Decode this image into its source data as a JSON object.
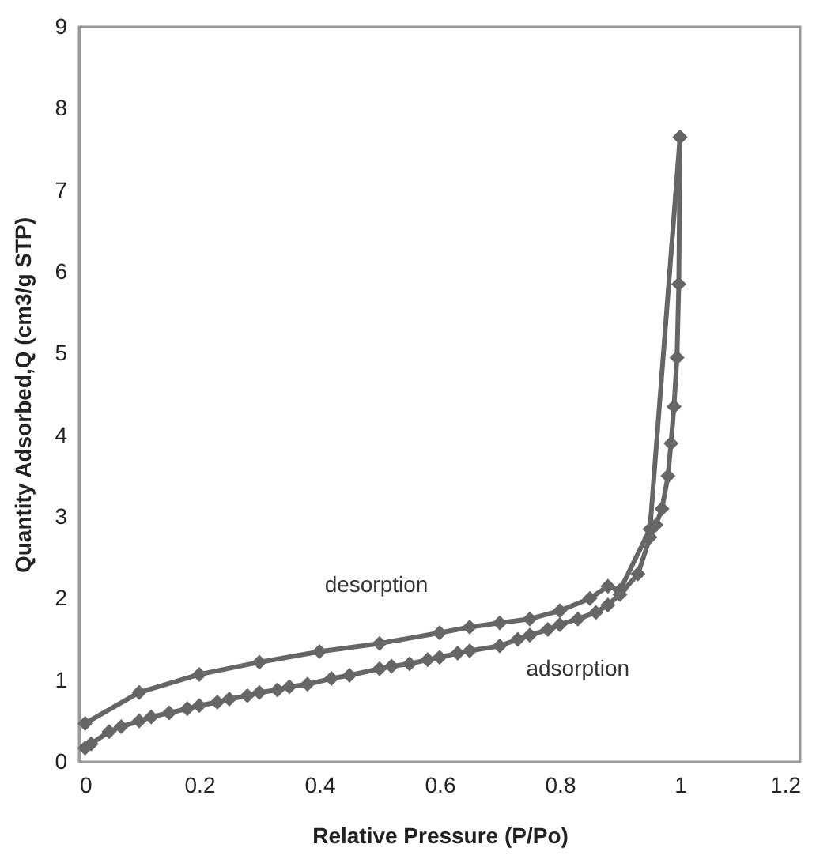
{
  "chart_data": {
    "type": "line",
    "xlabel": "Relative Pressure (P/Po)",
    "ylabel": "Quantity Adsorbed,Q (cm3/g STP)",
    "xlim": [
      0,
      1.2
    ],
    "xticks": [
      0,
      0.2,
      0.4,
      0.6,
      0.8,
      1,
      1.2
    ],
    "ylim": [
      0,
      9
    ],
    "yticks": [
      0,
      1,
      2,
      3,
      4,
      5,
      6,
      7,
      8,
      9
    ],
    "grid": false,
    "marker": "diamond",
    "line_style": "solid",
    "annotations": [
      {
        "text": "desorption",
        "x": 0.6,
        "y": 1.58
      },
      {
        "text": "adsorption",
        "x": 0.83,
        "y": 1.75
      }
    ],
    "series": [
      {
        "color": "#666666",
        "x": [
          0.01,
          0.02,
          0.05,
          0.07,
          0.1,
          0.12,
          0.15,
          0.18,
          0.2,
          0.23,
          0.25,
          0.28,
          0.3,
          0.33,
          0.35,
          0.38,
          0.42,
          0.45,
          0.5,
          0.52,
          0.55,
          0.58,
          0.6,
          0.63,
          0.65,
          0.7,
          0.73,
          0.75,
          0.78,
          0.8,
          0.83,
          0.86,
          0.88,
          0.9,
          0.93,
          0.95,
          0.96,
          0.97,
          0.98,
          0.985,
          0.99,
          0.995,
          0.998,
          1.0
        ],
        "values": [
          0.17,
          0.22,
          0.37,
          0.43,
          0.5,
          0.55,
          0.6,
          0.65,
          0.69,
          0.73,
          0.77,
          0.81,
          0.85,
          0.88,
          0.92,
          0.95,
          1.02,
          1.06,
          1.14,
          1.17,
          1.2,
          1.25,
          1.28,
          1.33,
          1.36,
          1.42,
          1.5,
          1.55,
          1.62,
          1.68,
          1.75,
          1.83,
          1.92,
          2.05,
          2.3,
          2.75,
          2.9,
          3.1,
          3.5,
          3.9,
          4.35,
          4.95,
          5.85,
          7.65
        ]
      },
      {
        "color": "#666666",
        "x": [
          1.0,
          0.95,
          0.9,
          0.88,
          0.85,
          0.8,
          0.75,
          0.7,
          0.65,
          0.6,
          0.5,
          0.4,
          0.3,
          0.2,
          0.1,
          0.01
        ],
        "values": [
          7.65,
          2.85,
          2.1,
          2.15,
          2.0,
          1.85,
          1.75,
          1.7,
          1.65,
          1.58,
          1.45,
          1.35,
          1.22,
          1.07,
          0.85,
          0.47
        ]
      }
    ]
  }
}
